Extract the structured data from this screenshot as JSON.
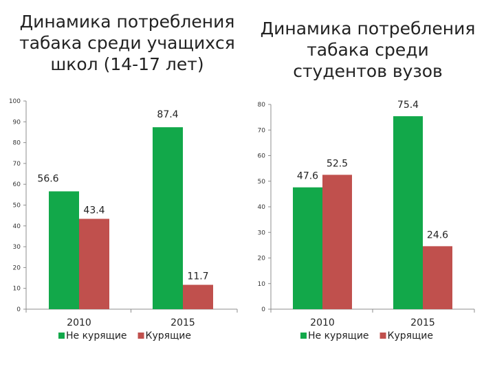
{
  "chart_data": [
    {
      "type": "bar",
      "title": "Динамика потребления табака среди учащихся школ (14-17 лет)",
      "categories": [
        "2010",
        "2015"
      ],
      "series": [
        {
          "name": "Не курящие",
          "values": [
            56.6,
            87.4
          ]
        },
        {
          "name": "Курящие",
          "values": [
            43.4,
            11.7
          ]
        }
      ],
      "data_labels": [
        [
          "56.6",
          "87.4"
        ],
        [
          "43.4",
          "11.7"
        ]
      ],
      "ylim": [
        0,
        100
      ],
      "yticks": [
        "0",
        "10",
        "20",
        "30",
        "40",
        "50",
        "60",
        "70",
        "80",
        "90",
        "100"
      ],
      "grid": false,
      "legend": "bottom",
      "colors": [
        "#12a84a",
        "#c0504d"
      ]
    },
    {
      "type": "bar",
      "title": "Динамика потребления табака среди студентов вузов",
      "categories": [
        "2010",
        "2015"
      ],
      "series": [
        {
          "name": "Не курящие",
          "values": [
            47.6,
            75.4
          ]
        },
        {
          "name": "Курящие",
          "values": [
            52.5,
            24.6
          ]
        }
      ],
      "data_labels": [
        [
          "47.6",
          "75.4"
        ],
        [
          "52.5",
          "24.6"
        ]
      ],
      "ylim": [
        0,
        80
      ],
      "yticks": [
        "0",
        "10",
        "20",
        "30",
        "40",
        "50",
        "60",
        "70",
        "80"
      ],
      "grid": false,
      "legend": "bottom",
      "colors": [
        "#12a84a",
        "#c0504d"
      ]
    }
  ]
}
